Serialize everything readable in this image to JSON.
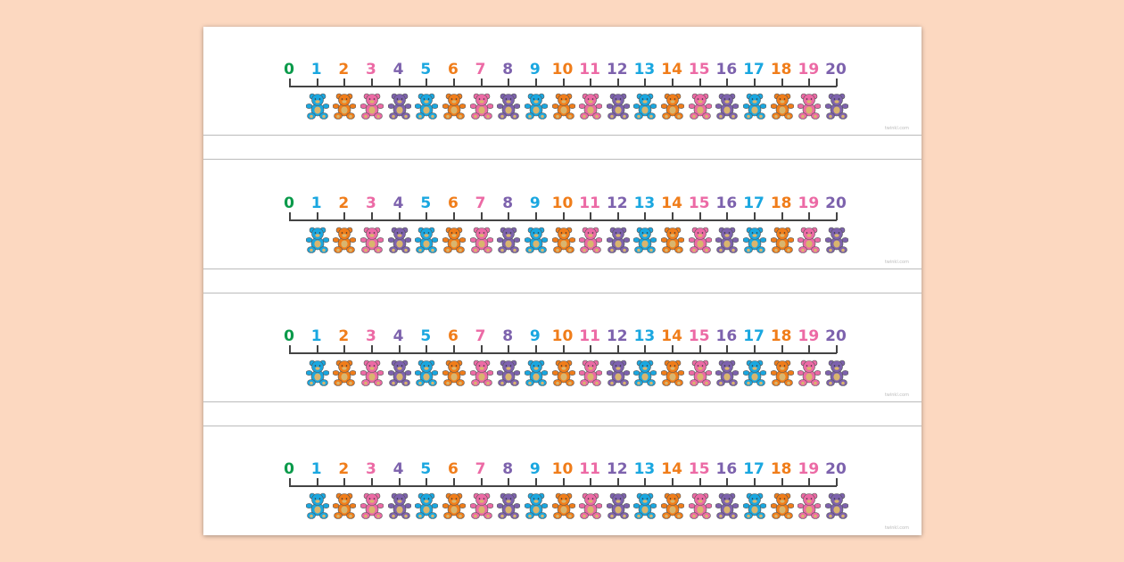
{
  "numbers": [
    "0",
    "1",
    "2",
    "3",
    "4",
    "5",
    "6",
    "7",
    "8",
    "9",
    "10",
    "11",
    "12",
    "13",
    "14",
    "15",
    "16",
    "17",
    "18",
    "19",
    "20"
  ],
  "colors": {
    "zero": "#0a9a4a",
    "cycle": [
      "#1aa7e0",
      "#f07d1a",
      "#ec6aa5",
      "#7d62ad"
    ]
  },
  "bear_icon": "teddy-bear-icon",
  "strip_count": 4,
  "watermark": "twinkl.com"
}
